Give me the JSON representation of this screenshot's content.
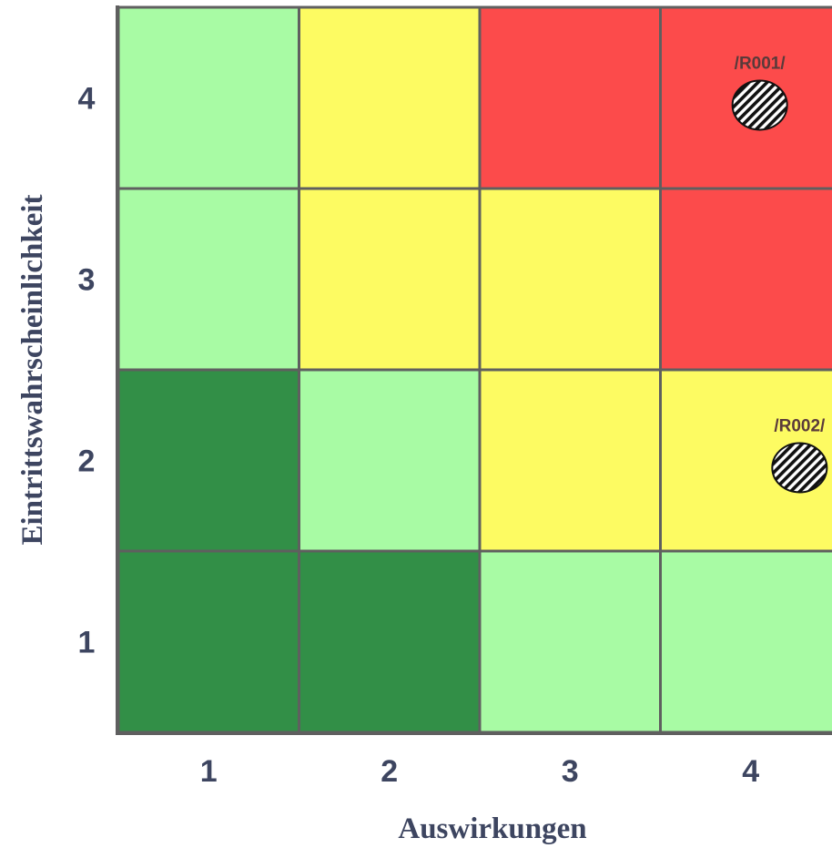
{
  "chart_data": {
    "type": "heatmap",
    "title": "",
    "xlabel": "Auswirkungen",
    "ylabel": "Eintrittswahrscheinlichkeit",
    "x_categories": [
      "1",
      "2",
      "3",
      "4"
    ],
    "y_categories": [
      "1",
      "2",
      "3",
      "4"
    ],
    "levels": {
      "very_low": "#328f47",
      "low": "#a8fba4",
      "medium": "#fdfb62",
      "high": "#fc4b4b"
    },
    "grid": [
      [
        "very_low",
        "very_low",
        "low",
        "low"
      ],
      [
        "very_low",
        "low",
        "medium",
        "medium"
      ],
      [
        "low",
        "medium",
        "medium",
        "high"
      ],
      [
        "low",
        "medium",
        "high",
        "high"
      ]
    ],
    "risks": [
      {
        "label": "/R001/",
        "impact": 4.05,
        "probability": 3.96
      },
      {
        "label": "/R002/",
        "impact": 4.27,
        "probability": 1.96
      }
    ]
  }
}
